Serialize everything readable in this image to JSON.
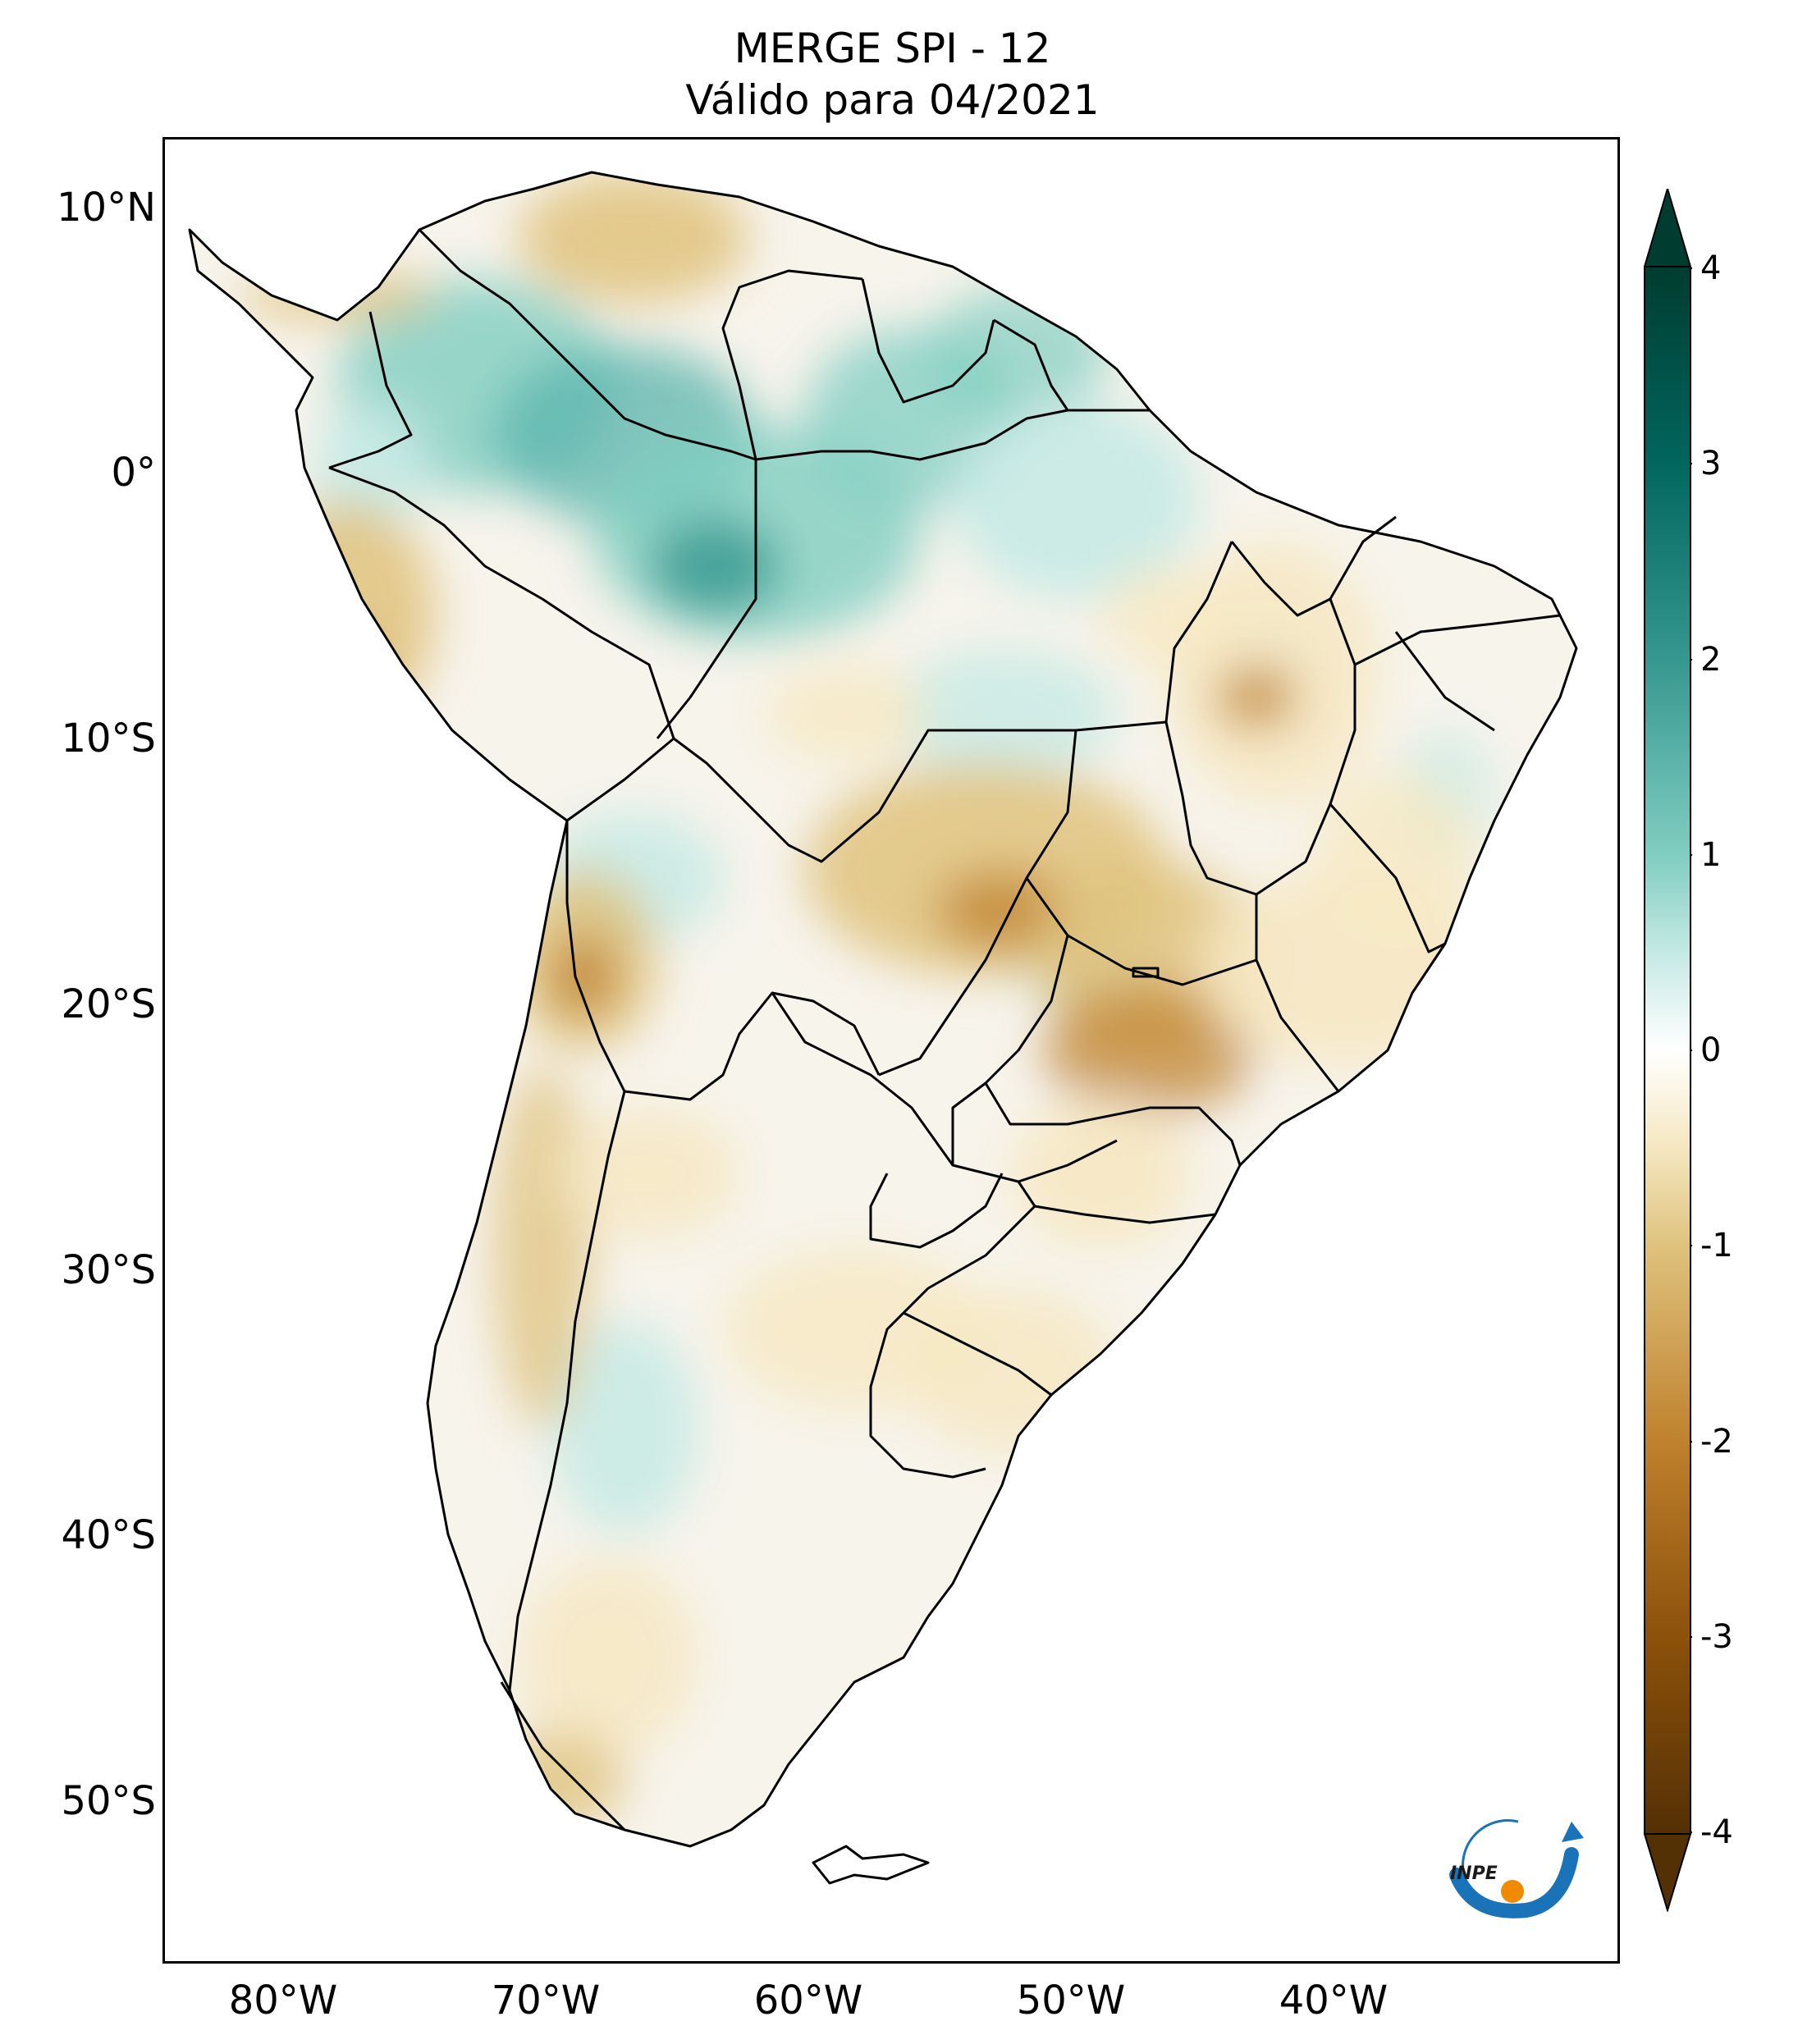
{
  "title": {
    "line1": "MERGE   SPI - 12",
    "line2": "Válido para 04/2021"
  },
  "axes": {
    "lat_labels": [
      "10°N",
      "0°",
      "10°S",
      "20°S",
      "30°S",
      "40°S",
      "50°S"
    ],
    "lon_labels": [
      "80°W",
      "70°W",
      "60°W",
      "50°W",
      "40°W"
    ]
  },
  "colorbar": {
    "ticks": [
      "4",
      "3",
      "2",
      "1",
      "0",
      "-1",
      "-2",
      "-3",
      "-4"
    ],
    "range": [
      -4,
      4
    ],
    "extend": "both",
    "colors": {
      "max": "#003c30",
      "high": "#35978f",
      "mid_high": "#c7eae5",
      "zero": "#ffffff",
      "mid_low": "#f6e8c3",
      "low": "#bf812d",
      "min": "#543005"
    }
  },
  "logo": {
    "text": "INPE",
    "colors": {
      "arc": "#1a72b8",
      "dot": "#f08a00"
    }
  },
  "map_data": {
    "region": "South America",
    "lon_range": [
      -85,
      -29
    ],
    "lat_range": [
      -56,
      13
    ]
  }
}
